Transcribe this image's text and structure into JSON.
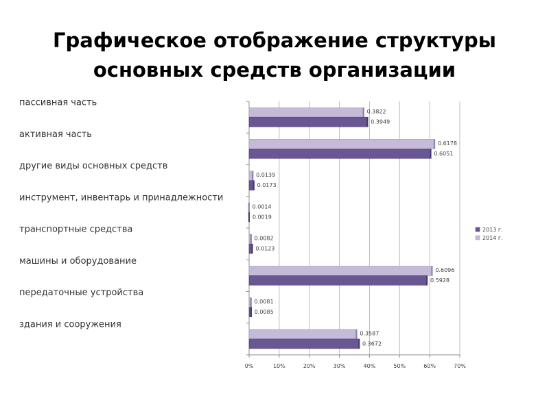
{
  "title": {
    "line1": "Графическое отображение структуры",
    "line2": "основных средств организации"
  },
  "chart_data": {
    "type": "bar",
    "orientation": "horizontal",
    "categories": [
      "пассивная часть",
      "активная часть",
      "другие виды основных средств",
      "инструмент, инвентарь и принадлежности",
      "транспортные средства",
      "машины и оборудование",
      "передаточные устройства",
      "здания и сооружения"
    ],
    "series": [
      {
        "name": "2013 г.",
        "color": "#6a5791",
        "values": [
          0.3949,
          0.6051,
          0.0173,
          0.0019,
          0.0123,
          0.5928,
          0.0085,
          0.3672
        ],
        "labels": [
          "0.3949",
          "0.6051",
          "0.0173",
          "0.0019",
          "0.0123",
          "0.5928",
          "0.0085",
          "0.3672"
        ]
      },
      {
        "name": "2014 г.",
        "color": "#c5bad8",
        "values": [
          0.3822,
          0.6178,
          0.0139,
          0.0014,
          0.0082,
          0.6096,
          0.0081,
          0.3587
        ],
        "labels": [
          "0.3822",
          "0.6178",
          "0.0139",
          "0.0014",
          "0.0082",
          "0.6096",
          "0.0081",
          "0.3587"
        ]
      }
    ],
    "xlim": [
      0,
      0.7
    ],
    "ticks": [
      0,
      0.1,
      0.2,
      0.3,
      0.4,
      0.5,
      0.6,
      0.7
    ],
    "tick_labels": [
      "0%",
      "10%",
      "20%",
      "30%",
      "40%",
      "50%",
      "60%",
      "70%"
    ],
    "grid": true,
    "legend_position": "right",
    "xlabel": "",
    "ylabel": ""
  }
}
